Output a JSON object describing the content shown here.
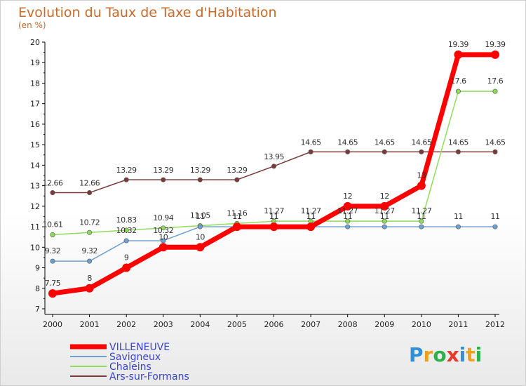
{
  "chart_data": {
    "type": "line",
    "title": "Evolution du Taux de Taxe d'Habitation",
    "subtitle": "(en %)",
    "x": [
      "2000",
      "2001",
      "2002",
      "2003",
      "2004",
      "2005",
      "2006",
      "2007",
      "2008",
      "2009",
      "2010",
      "2011",
      "2012"
    ],
    "yticks": [
      "7",
      "8",
      "9",
      "10",
      "11",
      "12",
      "13",
      "14",
      "15",
      "16",
      "17",
      "18",
      "19",
      "20"
    ],
    "ylim": [
      7,
      20
    ],
    "grid": false,
    "legend_position": "bottom-left",
    "series": [
      {
        "name": "VILLENEUVE",
        "color": "#ff0000",
        "values": [
          7.75,
          8,
          9,
          10,
          10,
          11,
          11,
          11,
          12,
          12,
          13,
          19.39,
          19.39
        ],
        "labels": [
          "7.75",
          "8",
          "9",
          "10",
          "10",
          "11",
          "11",
          "11",
          "12",
          "12",
          "13",
          "19.39",
          "19.39"
        ]
      },
      {
        "name": "Savigneux",
        "color": "#6ea0d0",
        "values": [
          9.32,
          9.32,
          10.32,
          10.32,
          11,
          11,
          11,
          11,
          11,
          11,
          11,
          11,
          11
        ],
        "labels": [
          "9.32",
          "9.32",
          "10.32",
          "10.32",
          "11",
          "11",
          "11",
          "11",
          "11",
          "11",
          "11",
          "11",
          "11"
        ]
      },
      {
        "name": "Chaleins",
        "color": "#8fdc5a",
        "values": [
          10.61,
          10.72,
          10.83,
          10.94,
          11.05,
          11.16,
          11.27,
          11.27,
          11.27,
          11.27,
          11.27,
          17.6,
          17.6
        ],
        "labels": [
          "10.61",
          "10.72",
          "10.83",
          "10.94",
          "11.05",
          "11.16",
          "11.27",
          "11.27",
          "11.27",
          "11.27",
          "11.27",
          "17.6",
          "17.6"
        ]
      },
      {
        "name": "Ars-sur-Formans",
        "color": "#7a3a3a",
        "values": [
          12.66,
          12.66,
          13.29,
          13.29,
          13.29,
          13.29,
          13.95,
          14.65,
          14.65,
          14.65,
          14.65,
          14.65,
          14.65
        ],
        "labels": [
          "12.66",
          "12.66",
          "13.29",
          "13.29",
          "13.29",
          "13.29",
          "13.95",
          "14.65",
          "14.65",
          "14.65",
          "14.65",
          "14.65",
          "14.65"
        ]
      }
    ]
  },
  "brand": {
    "letters": [
      {
        "ch": "P",
        "color": "#2f8fd8"
      },
      {
        "ch": "r",
        "color": "#f0a020"
      },
      {
        "ch": "o",
        "color": "#2fb04a"
      },
      {
        "ch": "x",
        "color": "#e83a2a"
      },
      {
        "ch": "i",
        "color": "#2f8fd8"
      },
      {
        "ch": "t",
        "color": "#f0a020"
      },
      {
        "ch": "i",
        "color": "#2fb04a"
      }
    ]
  }
}
